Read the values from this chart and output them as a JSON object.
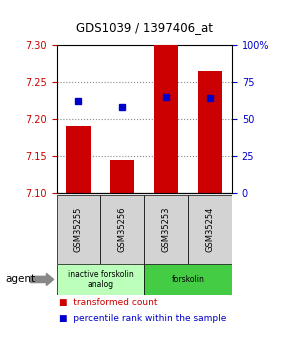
{
  "title": "GDS1039 / 1397406_at",
  "samples": [
    "GSM35255",
    "GSM35256",
    "GSM35253",
    "GSM35254"
  ],
  "bar_values": [
    7.19,
    7.145,
    7.3,
    7.265
  ],
  "bar_bottom": 7.1,
  "dot_values": [
    62,
    58,
    65,
    64
  ],
  "ylim_left": [
    7.1,
    7.3
  ],
  "ylim_right": [
    0,
    100
  ],
  "yticks_left": [
    7.1,
    7.15,
    7.2,
    7.25,
    7.3
  ],
  "yticks_right": [
    0,
    25,
    50,
    75,
    100
  ],
  "bar_color": "#cc0000",
  "dot_color": "#0000cc",
  "left_tick_color": "#cc0000",
  "right_tick_color": "#0000cc",
  "groups": [
    {
      "label": "inactive forskolin\nanalog",
      "color": "#bbffbb",
      "start": 0,
      "end": 2
    },
    {
      "label": "forskolin",
      "color": "#44cc44",
      "start": 2,
      "end": 4
    }
  ],
  "agent_label": "agent",
  "legend_bar_label": "transformed count",
  "legend_dot_label": "percentile rank within the sample",
  "grid_color": "#888888",
  "background_color": "#ffffff"
}
